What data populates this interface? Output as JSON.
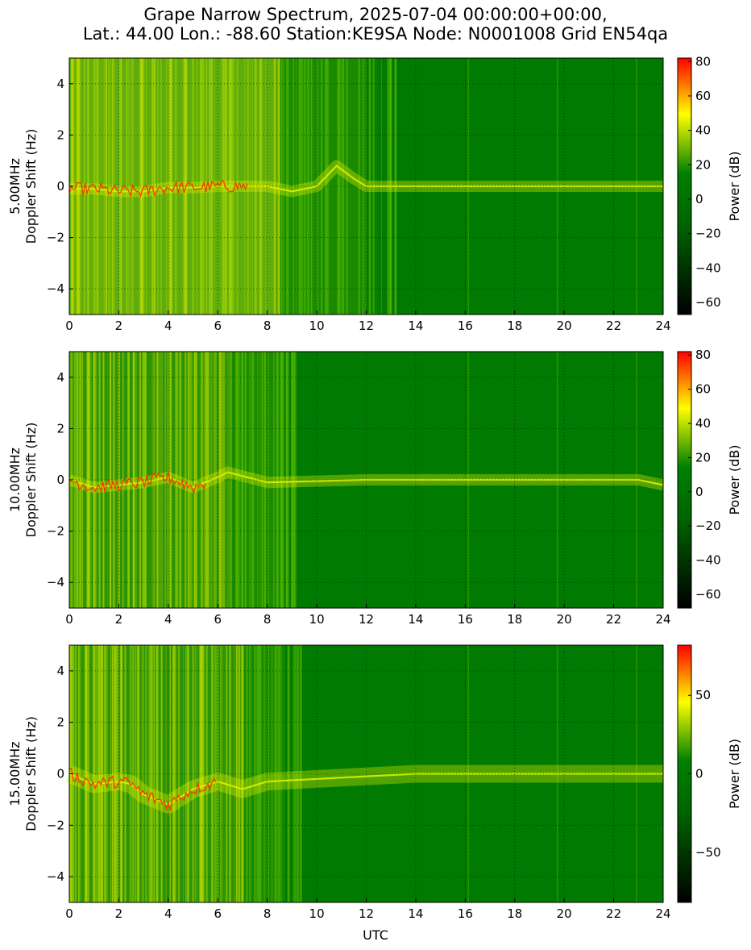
{
  "title": {
    "line1": "Grape Narrow Spectrum, 2025-07-04 00:00:00+00:00,",
    "line2": "Lat.: 44.00 Lon.: -88.60 Station:KE9SA Node: N0001008 Grid EN54qa"
  },
  "xlabel": "UTC",
  "colors": {
    "cmap": [
      "#000000",
      "#006400",
      "#008000",
      "#ffff00",
      "#ff0000"
    ],
    "background": "#007a00"
  },
  "chart_data": [
    {
      "type": "heatmap",
      "frequency_label": "5.00MHz",
      "ylabel": "Doppler Shift (Hz)",
      "xlabel": "",
      "colorbar_label": "Power (dB)",
      "xlim": [
        0,
        24
      ],
      "ylim": [
        -5,
        5
      ],
      "xticks": [
        0,
        2,
        4,
        6,
        8,
        10,
        12,
        14,
        16,
        18,
        20,
        22,
        24
      ],
      "yticks": [
        -4,
        -2,
        0,
        2,
        4
      ],
      "clim": [
        -67,
        82
      ],
      "cticks": [
        -60,
        -40,
        -20,
        0,
        20,
        40,
        60,
        80
      ],
      "grid": true,
      "signal_trace": [
        [
          0,
          -0.1
        ],
        [
          1,
          -0.1
        ],
        [
          2,
          -0.2
        ],
        [
          3,
          -0.2
        ],
        [
          4,
          -0.05
        ],
        [
          5,
          -0.05
        ],
        [
          6,
          0
        ],
        [
          7,
          0
        ],
        [
          8,
          0
        ],
        [
          9,
          -0.2
        ],
        [
          10,
          0
        ],
        [
          10.8,
          0.8
        ],
        [
          11.5,
          0.3
        ],
        [
          12,
          0
        ],
        [
          24,
          0
        ]
      ],
      "noisy_until_utc": 12,
      "bright_until_utc": 8.5
    },
    {
      "type": "heatmap",
      "frequency_label": "10.00MHz",
      "ylabel": "Doppler Shift (Hz)",
      "xlabel": "",
      "colorbar_label": "Power (dB)",
      "xlim": [
        0,
        24
      ],
      "ylim": [
        -5,
        5
      ],
      "xticks": [
        0,
        2,
        4,
        6,
        8,
        10,
        12,
        14,
        16,
        18,
        20,
        22,
        24
      ],
      "yticks": [
        -4,
        -2,
        0,
        2,
        4
      ],
      "clim": [
        -68,
        82
      ],
      "cticks": [
        -60,
        -40,
        -20,
        0,
        20,
        40,
        60,
        80
      ],
      "grid": true,
      "signal_trace": [
        [
          0,
          0
        ],
        [
          1,
          -0.3
        ],
        [
          2,
          -0.2
        ],
        [
          3,
          -0.1
        ],
        [
          4,
          0.1
        ],
        [
          5,
          -0.3
        ],
        [
          6,
          0.1
        ],
        [
          6.4,
          0.3
        ],
        [
          8,
          -0.1
        ],
        [
          12,
          0
        ],
        [
          13,
          0
        ],
        [
          20,
          0
        ],
        [
          23,
          0
        ],
        [
          24,
          -0.2
        ]
      ],
      "noisy_until_utc": 8.5,
      "bright_until_utc": 6.5
    },
    {
      "type": "heatmap",
      "frequency_label": "15.00MHz",
      "ylabel": "Doppler Shift (Hz)",
      "xlabel": "UTC",
      "colorbar_label": "Power (dB)",
      "xlim": [
        0,
        24
      ],
      "ylim": [
        -5,
        5
      ],
      "xticks": [
        0,
        2,
        4,
        6,
        8,
        10,
        12,
        14,
        16,
        18,
        20,
        22,
        24
      ],
      "yticks": [
        -4,
        -2,
        0,
        2,
        4
      ],
      "clim": [
        -82,
        82
      ],
      "cticks": [
        -50,
        0,
        50
      ],
      "grid": true,
      "signal_trace": [
        [
          0,
          0
        ],
        [
          1,
          -0.4
        ],
        [
          2,
          -0.3
        ],
        [
          2.5,
          -0.4
        ],
        [
          3,
          -0.8
        ],
        [
          4,
          -1.2
        ],
        [
          5,
          -0.6
        ],
        [
          6,
          -0.3
        ],
        [
          7,
          -0.6
        ],
        [
          8,
          -0.3
        ],
        [
          14,
          0
        ],
        [
          24,
          0
        ]
      ],
      "noisy_until_utc": 8.5,
      "bright_until_utc": 7
    }
  ]
}
